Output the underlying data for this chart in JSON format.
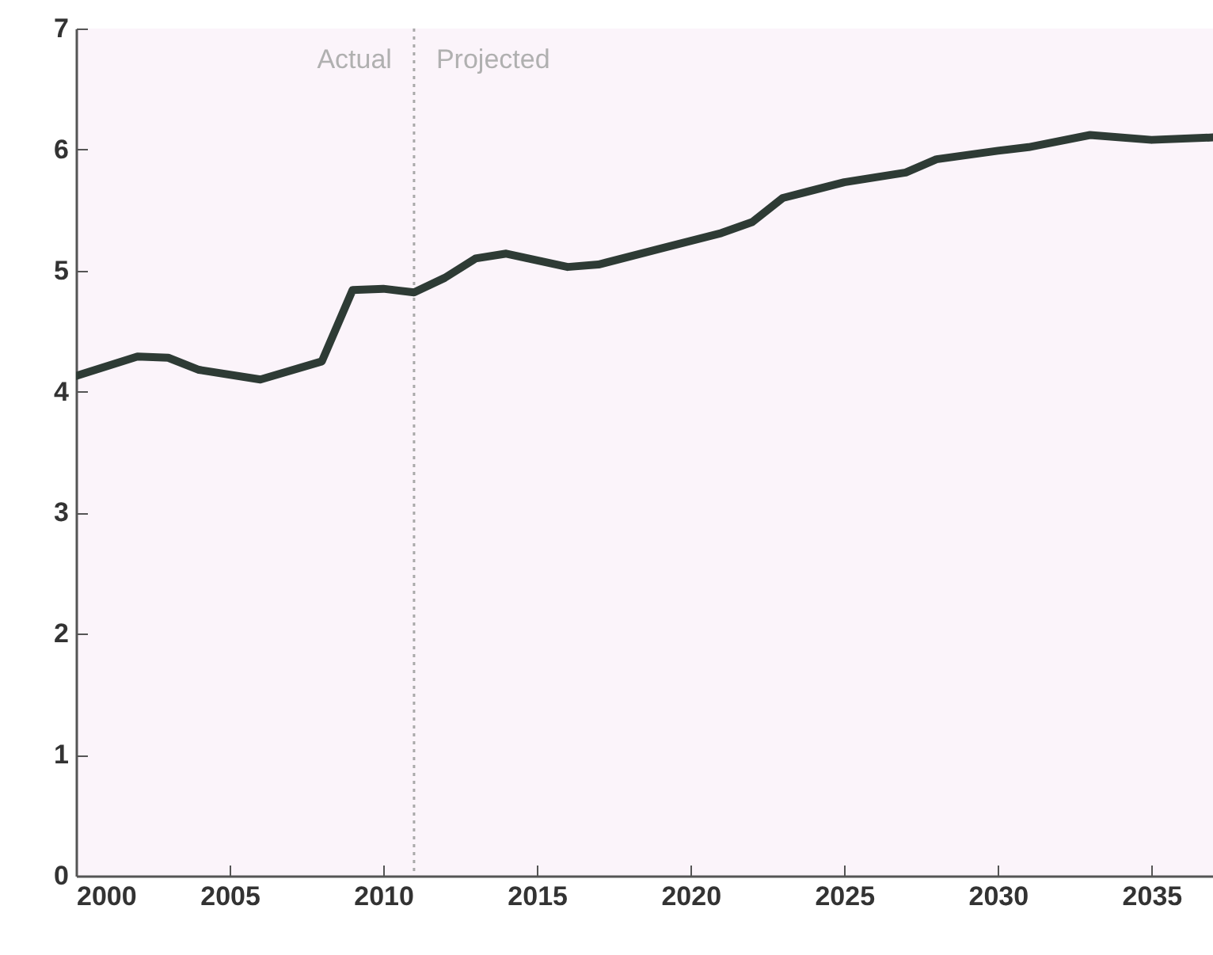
{
  "chart_data": {
    "type": "line",
    "x": [
      2000,
      2002,
      2003,
      2004,
      2006,
      2008,
      2009,
      2010,
      2011,
      2012,
      2013,
      2014,
      2016,
      2017,
      2019,
      2021,
      2022,
      2023,
      2025,
      2027,
      2028,
      2030,
      2031,
      2033,
      2035,
      2037
    ],
    "series": [
      {
        "color": "#2e3b35",
        "values": [
          4.13,
          4.29,
          4.28,
          4.18,
          4.1,
          4.25,
          4.84,
          4.85,
          4.82,
          4.94,
          5.1,
          5.14,
          5.03,
          5.05,
          5.18,
          5.31,
          5.4,
          5.6,
          5.73,
          5.81,
          5.92,
          5.99,
          6.02,
          6.12,
          6.08,
          6.1
        ]
      }
    ],
    "xlim": [
      2000,
      2037
    ],
    "xticks": [
      2000,
      2005,
      2010,
      2015,
      2020,
      2025,
      2030,
      2035
    ],
    "ylim": [
      0,
      7
    ],
    "yticks": [
      0,
      1,
      2,
      3,
      4,
      5,
      6,
      7
    ],
    "ref_lines": [
      {
        "axis": "x",
        "value": 2011,
        "color": "#a9a9a9",
        "line_style": "dotted"
      }
    ],
    "annotations": [
      "Actual",
      "Projected"
    ],
    "grid": false,
    "marker": "none",
    "line_style": "solid"
  }
}
